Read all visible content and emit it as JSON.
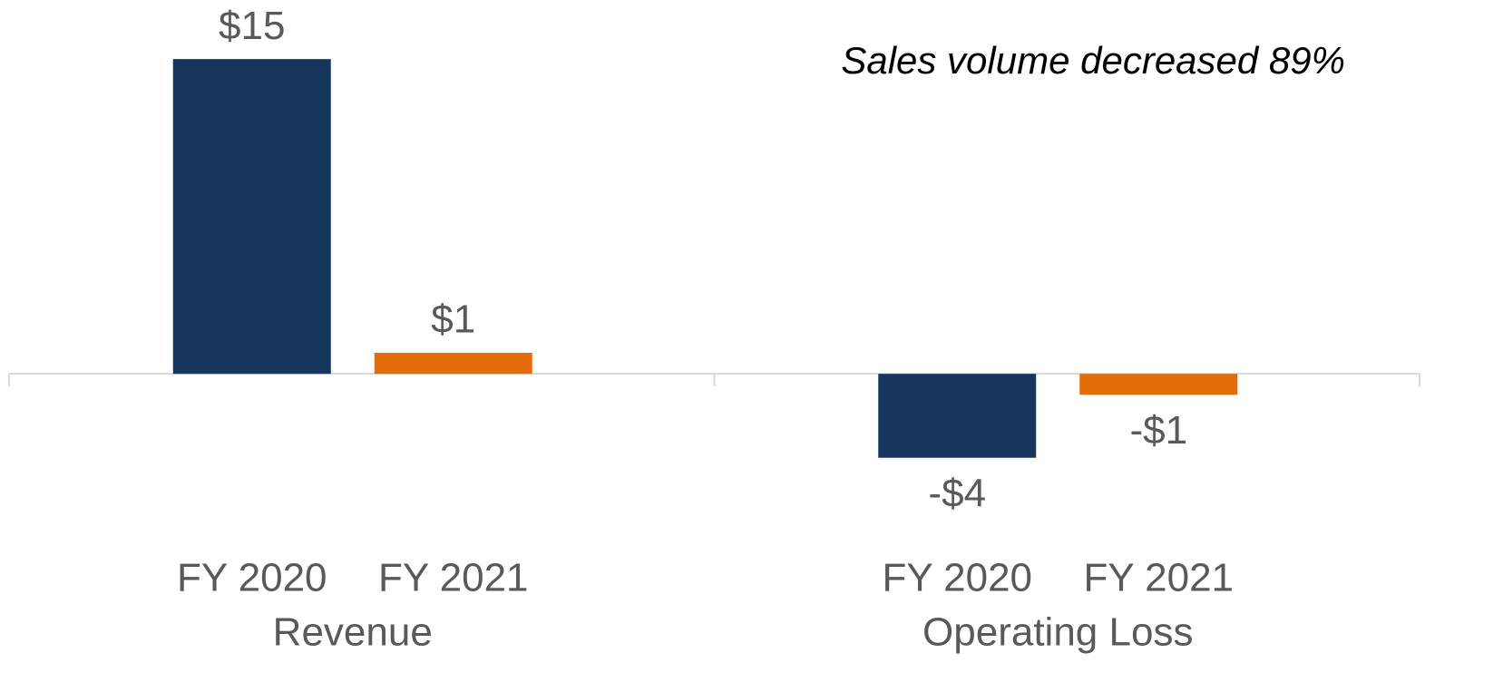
{
  "chart_data": {
    "type": "bar",
    "annotation": "Sales volume decreased 89%",
    "categories": [
      "Revenue",
      "Operating Loss"
    ],
    "series": [
      {
        "name": "FY 2020",
        "color": "#17365d",
        "values": [
          15,
          -4
        ],
        "value_labels": [
          "$15",
          "-$4"
        ]
      },
      {
        "name": "FY 2021",
        "color": "#e46c0a",
        "values": [
          1,
          -1
        ],
        "value_labels": [
          "$1",
          "-$1"
        ]
      }
    ],
    "ylim": [
      -6,
      16
    ]
  }
}
